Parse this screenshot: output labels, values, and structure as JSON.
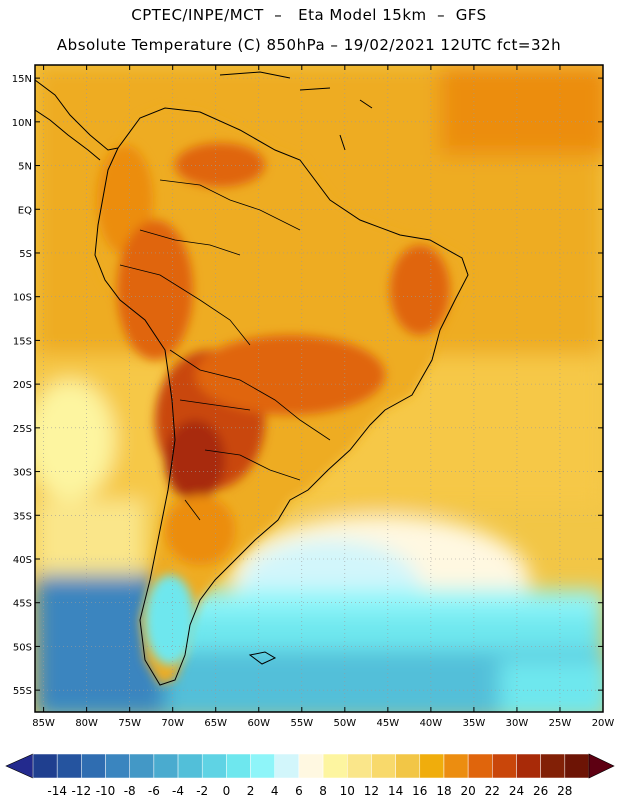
{
  "header": {
    "line1": "CPTEC/INPE/MCT  –   Eta Model 15km  –  GFS",
    "line2": "Absolute Temperature (C) 850hPa – 19/02/2021 12UTC fct=32h"
  },
  "map": {
    "lat_labels": [
      "15N",
      "10N",
      "5N",
      "EQ",
      "5S",
      "10S",
      "15S",
      "20S",
      "25S",
      "30S",
      "35S",
      "40S",
      "45S",
      "50S",
      "55S"
    ],
    "lat_values": [
      15,
      10,
      5,
      0,
      -5,
      -10,
      -15,
      -20,
      -25,
      -30,
      -35,
      -40,
      -45,
      -50,
      -55
    ],
    "lon_labels": [
      "85W",
      "80W",
      "75W",
      "70W",
      "65W",
      "60W",
      "55W",
      "50W",
      "45W",
      "40W",
      "35W",
      "30W",
      "25W",
      "20W"
    ],
    "lon_values": [
      -85,
      -80,
      -75,
      -70,
      -65,
      -60,
      -55,
      -50,
      -45,
      -40,
      -35,
      -30,
      -25,
      -20
    ],
    "lat_range": [
      -57.5,
      16.5
    ],
    "lon_range": [
      -86,
      -20
    ]
  },
  "colorbar": {
    "labels": [
      "-14",
      "-12",
      "-10",
      "-8",
      "-6",
      "-4",
      "-2",
      "0",
      "2",
      "4",
      "6",
      "8",
      "10",
      "12",
      "14",
      "16",
      "18",
      "20",
      "22",
      "24",
      "26",
      "28"
    ],
    "colors": [
      "#1f3f8f",
      "#25549f",
      "#2f6db1",
      "#3a85bf",
      "#4398c6",
      "#4aabcf",
      "#52bfd9",
      "#5fd3e4",
      "#6ee7ee",
      "#8ef5f9",
      "#d2f6fb",
      "#fff8e1",
      "#fdf5a0",
      "#fae68a",
      "#f8d96b",
      "#f2c646",
      "#f0ad0c",
      "#ec8d10",
      "#e0650c",
      "#c9460a",
      "#a82a08",
      "#822006",
      "#6d1405"
    ],
    "arrow_low_color": "#232a8e",
    "arrow_high_color": "#5d0012"
  },
  "palette": {
    "ocean_tropical": "#eeac24",
    "ocean_subtropical": "#f6c847",
    "ocean_cool": "#fdf5a0",
    "ocean_cold": "#8ef5f9",
    "ocean_polar": "#4aabcf",
    "land_warm": "#ec8d10",
    "land_hot": "#c9460a",
    "coast": "#000000",
    "grid": "#9a9a9a"
  }
}
